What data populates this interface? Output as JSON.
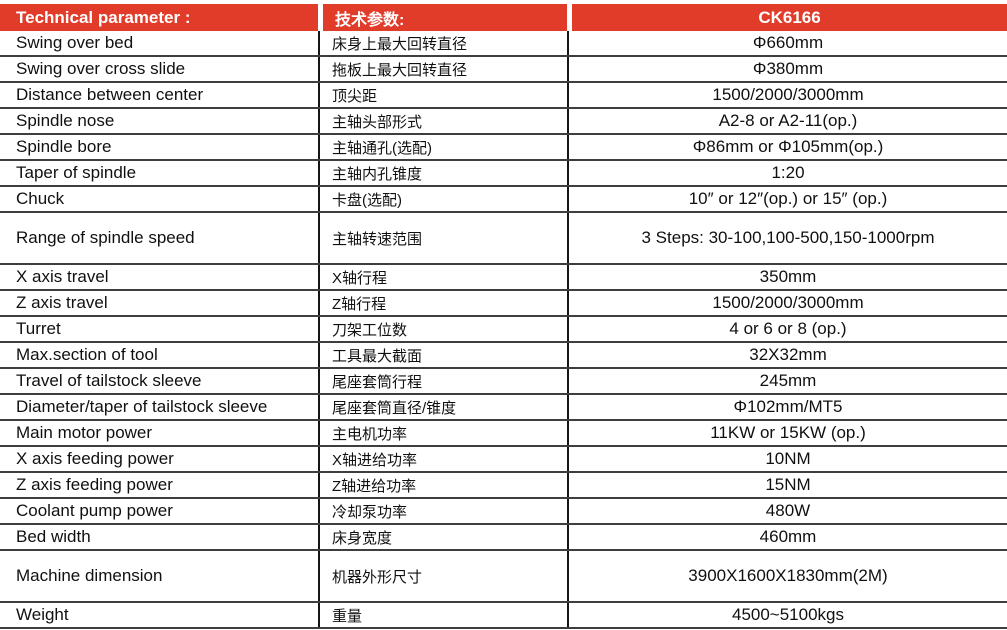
{
  "colors": {
    "header_bg": "#e13b2a",
    "header_text": "#ffffff",
    "grid_line": "#3e3e3e"
  },
  "header": {
    "en": "Technical parameter :",
    "zh": "技术参数:",
    "model": "CK6166"
  },
  "rows": [
    {
      "en": "Swing over bed",
      "zh": "床身上最大回转直径",
      "value": "Φ660mm",
      "tall": false
    },
    {
      "en": "Swing over cross slide",
      "zh": "拖板上最大回转直径",
      "value": "Φ380mm",
      "tall": false
    },
    {
      "en": "Distance between center",
      "zh": "顶尖距",
      "value": "1500/2000/3000mm",
      "tall": false
    },
    {
      "en": "Spindle nose",
      "zh": "主轴头部形式",
      "value": "A2-8 or A2-11(op.)",
      "tall": false
    },
    {
      "en": "Spindle bore",
      "zh": "主轴通孔(选配)",
      "value": "Φ86mm or Φ105mm(op.)",
      "tall": false
    },
    {
      "en": "Taper of spindle",
      "zh": "主轴内孔锥度",
      "value": "1:20",
      "tall": false
    },
    {
      "en": "Chuck",
      "zh": "卡盘(选配)",
      "value": "10″ or 12″(op.) or 15″ (op.)",
      "tall": false
    },
    {
      "en": "Range of spindle speed",
      "zh": "主轴转速范围",
      "value": "3 Steps: 30-100,100-500,150-1000rpm",
      "tall": true
    },
    {
      "en": "X axis travel",
      "zh": "X轴行程",
      "value": "350mm",
      "tall": false
    },
    {
      "en": "Z axis travel",
      "zh": "Z轴行程",
      "value": "1500/2000/3000mm",
      "tall": false
    },
    {
      "en": "Turret",
      "zh": "刀架工位数",
      "value": "4 or 6 or 8 (op.)",
      "tall": false
    },
    {
      "en": "Max.section of tool",
      "zh": "工具最大截面",
      "value": "32X32mm",
      "tall": false
    },
    {
      "en": "Travel of tailstock sleeve",
      "zh": "尾座套筒行程",
      "value": "245mm",
      "tall": false
    },
    {
      "en": "Diameter/taper of tailstock sleeve",
      "zh": "尾座套筒直径/锥度",
      "value": "Φ102mm/MT5",
      "tall": false
    },
    {
      "en": "Main motor power",
      "zh": "主电机功率",
      "value": "11KW or 15KW (op.)",
      "tall": false
    },
    {
      "en": "X axis feeding power",
      "zh": "X轴进给功率",
      "value": "10NM",
      "tall": false
    },
    {
      "en": "Z axis feeding power",
      "zh": "Z轴进给功率",
      "value": "15NM",
      "tall": false
    },
    {
      "en": "Coolant pump power",
      "zh": "冷却泵功率",
      "value": "480W",
      "tall": false
    },
    {
      "en": "Bed width",
      "zh": "床身宽度",
      "value": "460mm",
      "tall": false
    },
    {
      "en": "Machine dimension",
      "zh": "机器外形尺寸",
      "value": "3900X1600X1830mm(2M)",
      "tall": true
    },
    {
      "en": "Weight",
      "zh": "重量",
      "value": "4500~5100kgs",
      "tall": false
    }
  ]
}
